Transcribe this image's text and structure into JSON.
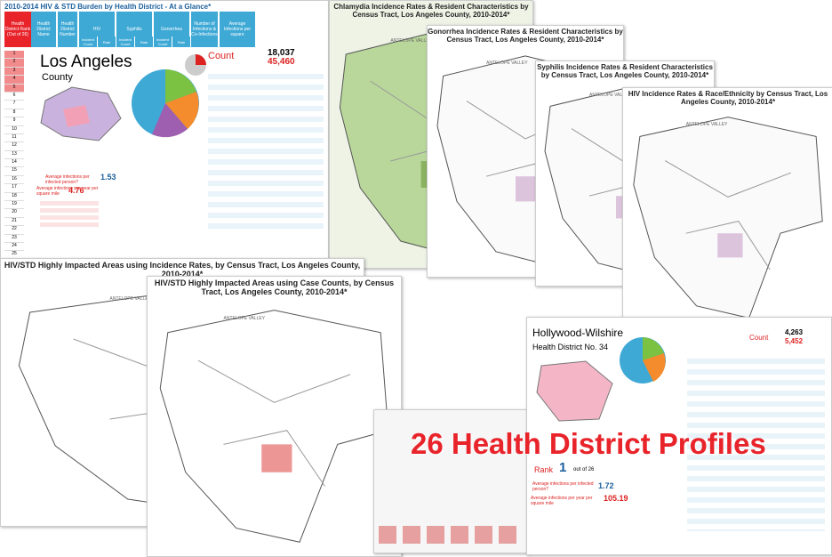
{
  "at_a_glance": {
    "title": "2010-2014 HIV & STD Burden by Health District - At a Glance*",
    "headers": [
      "Health District Rank (Out of 26)",
      "Health District Name",
      "Health District Number",
      "HIV",
      "Syphilis",
      "Gonorrhea",
      "Number of Infections & Co-Infections",
      "Average Infections per square"
    ],
    "subheaders": [
      "Incident Count",
      "Rate",
      "Incident Count",
      "Rate",
      "Incident Count",
      "Rate"
    ],
    "ranks": [
      1,
      2,
      3,
      4,
      5,
      6,
      7,
      8,
      9,
      10,
      11,
      12,
      13,
      14,
      15,
      16,
      17,
      18,
      19,
      20,
      21,
      22,
      23,
      24,
      25,
      26
    ]
  },
  "la_profile": {
    "name": "Los Angeles",
    "subtitle": "County",
    "count_label": "Count",
    "count_1": "18,037",
    "count_2": "45,460",
    "avg_person_label": "Average infections per infected person?",
    "avg_person": "1.53",
    "avg_mile_label": "Average infections per year per square mile",
    "avg_mile": "4.76"
  },
  "maps": [
    {
      "title": "Chlamydia Incidence Rates & Resident Characteristics by Census Tract, Los Angeles County, 2010-2014*"
    },
    {
      "title": "Gonorrhea Incidence Rates & Resident Characteristics by Census Tract, Los Angeles County, 2010-2014*"
    },
    {
      "title": "Syphilis Incidence Rates & Resident Characteristics by Census Tract, Los Angeles County, 2010-2014*"
    },
    {
      "title": "HIV Incidence Rates & Race/Ethnicity by Census Tract, Los Angeles County, 2010-2014*"
    },
    {
      "title": "HIV/STD Highly Impacted Areas using Incidence Rates, by Census Tract, Los Angeles County, 2010-2014*"
    },
    {
      "title": "HIV/STD Highly Impacted Areas using Case Counts, by Census Tract, Los Angeles County, 2010-2014*"
    }
  ],
  "region_label": "ANTELOPE VALLEY",
  "district_profile": {
    "name": "Hollywood-Wilshire",
    "number": "Health District No. 34",
    "rank_label": "Rank",
    "rank": "1",
    "rank_of": "out of 26",
    "count_label": "Count",
    "count_1": "4,263",
    "count_2": "5,452",
    "avg_person_label": "Average infections per infected person?",
    "avg_person": "1.72",
    "avg_mile_label": "Average infections per year per square mile",
    "avg_mile": "105.19"
  },
  "banner": "26 Health District Profiles"
}
